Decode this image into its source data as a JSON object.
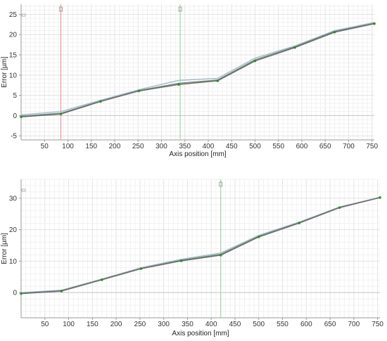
{
  "chart_data": [
    {
      "type": "line",
      "xlabel": "Axis position [mm]",
      "ylabel": "Error [µm]",
      "xlim": [
        0,
        755
      ],
      "ylim": [
        -6,
        27.5
      ],
      "xticks": [
        50,
        100,
        150,
        200,
        250,
        300,
        350,
        400,
        450,
        500,
        550,
        600,
        650,
        700,
        750
      ],
      "yticks": [
        -5,
        0,
        5,
        10,
        15,
        20,
        25
      ],
      "grid": true,
      "markers": [
        {
          "x": 85,
          "color": "#e88a8a"
        },
        {
          "x": 340,
          "color": "#8ecf9a"
        }
      ],
      "x": [
        0,
        85,
        170,
        252,
        337,
        420,
        500,
        585,
        670,
        755
      ],
      "series": [
        {
          "values": [
            0.2,
            1.0,
            3.8,
            6.4,
            8.7,
            9.2,
            14.2,
            17.2,
            21.0,
            23.0
          ],
          "color": "#9fb7c9"
        },
        {
          "values": [
            -0.1,
            0.6,
            3.6,
            6.2,
            8.0,
            8.8,
            13.8,
            17.0,
            20.8,
            22.8
          ],
          "color": "#6f8f76"
        },
        {
          "values": [
            -0.3,
            0.4,
            3.5,
            6.1,
            7.7,
            8.6,
            13.5,
            16.8,
            20.6,
            22.7
          ],
          "color": "#6d6d6d"
        }
      ],
      "point_color": "#2e8b2e"
    },
    {
      "type": "line",
      "xlabel": "Axis position [mm]",
      "ylabel": "Error [µm]",
      "xlim": [
        0,
        755
      ],
      "ylim": [
        -8,
        36
      ],
      "xticks": [
        50,
        100,
        150,
        200,
        250,
        300,
        350,
        400,
        450,
        500,
        550,
        600,
        650,
        700,
        750
      ],
      "yticks": [
        0,
        10,
        20,
        30
      ],
      "grid": true,
      "markers": [
        {
          "x": 420,
          "color": "#8ecf9a"
        }
      ],
      "x": [
        0,
        85,
        170,
        252,
        337,
        420,
        500,
        585,
        670,
        755
      ],
      "series": [
        {
          "values": [
            0.0,
            0.8,
            4.3,
            7.9,
            10.6,
            12.6,
            18.2,
            22.4,
            27.2,
            30.3
          ],
          "color": "#9fb7c9"
        },
        {
          "values": [
            -0.2,
            0.6,
            4.2,
            7.7,
            10.3,
            12.2,
            17.9,
            22.2,
            27.1,
            30.2
          ],
          "color": "#6f8f76"
        },
        {
          "values": [
            -0.3,
            0.5,
            4.1,
            7.6,
            10.1,
            11.9,
            17.7,
            22.1,
            27.0,
            30.2
          ],
          "color": "#6d6d6d"
        }
      ],
      "point_color": "#2e8b2e"
    }
  ]
}
